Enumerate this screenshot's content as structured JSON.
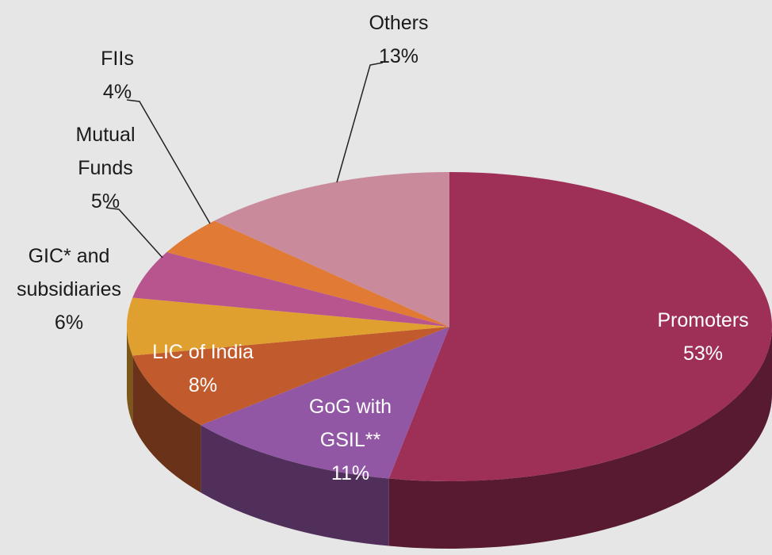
{
  "chart_data": {
    "type": "pie",
    "categories": [
      "Promoters",
      "GoG with GSIL**",
      "LIC of India",
      "GIC* and subsidiaries",
      "Mutual Funds",
      "FIIs",
      "Others"
    ],
    "values": [
      53,
      11,
      8,
      6,
      5,
      4,
      13
    ],
    "value_labels": [
      "53%",
      "11%",
      "8%",
      "6%",
      "5%",
      "4%",
      "13%"
    ],
    "colors": [
      "#9e3057",
      "#9157a5",
      "#c15a2c",
      "#e0a030",
      "#b8558f",
      "#e07a35",
      "#c98a9c"
    ]
  }
}
